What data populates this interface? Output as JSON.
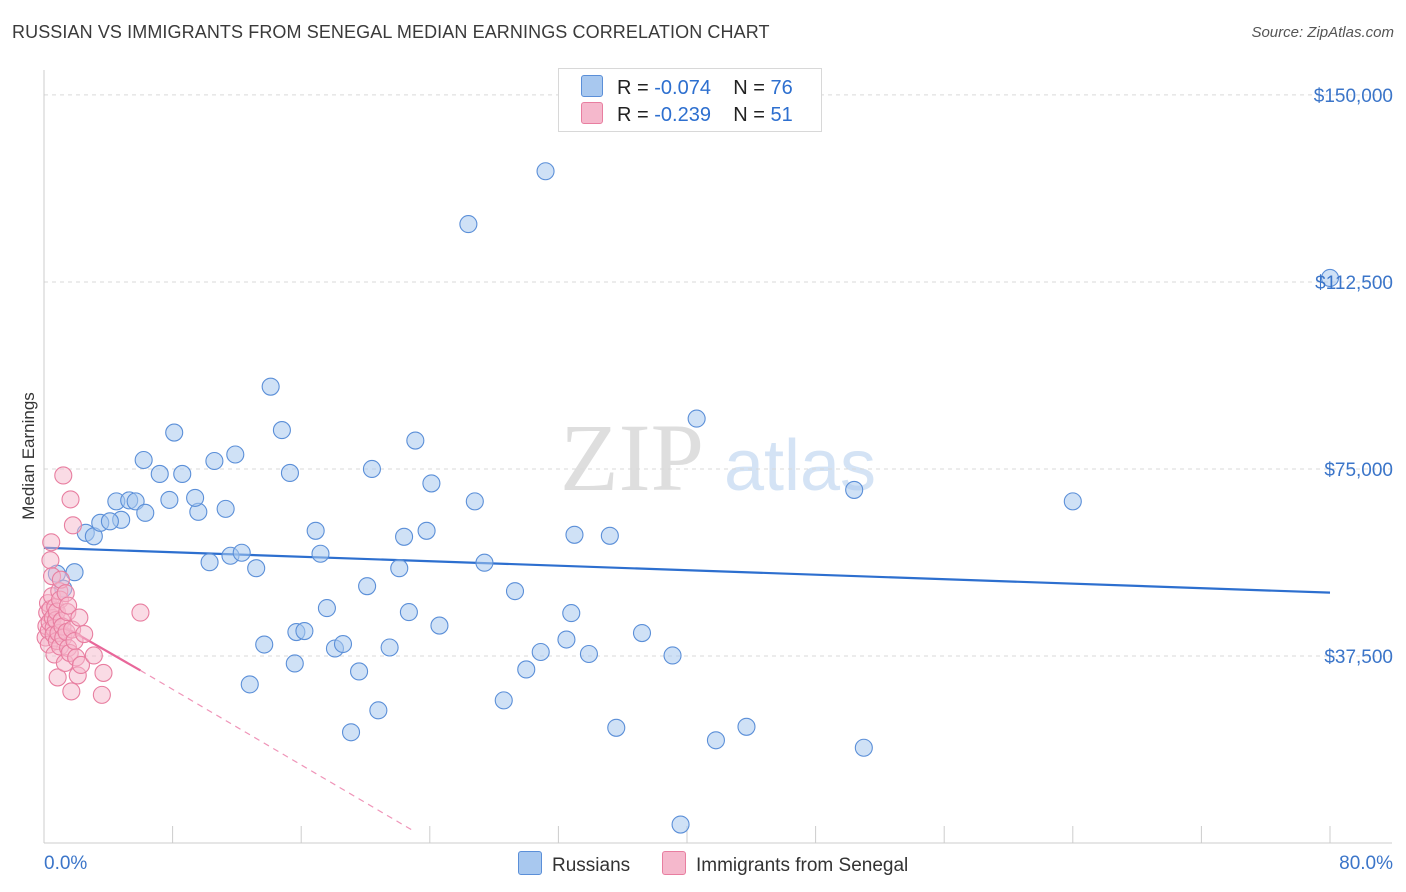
{
  "title": "RUSSIAN VS IMMIGRANTS FROM SENEGAL MEDIAN EARNINGS CORRELATION CHART",
  "source": "Source: ZipAtlas.com",
  "watermark": {
    "zip": "ZIP",
    "atlas": "atlas"
  },
  "legend": {
    "rows": [
      {
        "r_label": "R =",
        "r_value": "-0.074",
        "n_label": "N =",
        "n_value": "76"
      },
      {
        "r_label": "R =",
        "r_value": "-0.239",
        "n_label": "N =",
        "n_value": "51"
      }
    ]
  },
  "colors": {
    "blue_fill": "#a8c8ef",
    "blue_stroke": "#5b8fd8",
    "blue_line": "#2d6fcf",
    "pink_fill": "#f5b8cc",
    "pink_stroke": "#e87ea0",
    "pink_line": "#e8679a",
    "axis_label": "#3b75c9",
    "grid": "#d9d9d9"
  },
  "chart_data": {
    "type": "scatter",
    "title": "RUSSIAN VS IMMIGRANTS FROM SENEGAL MEDIAN EARNINGS CORRELATION CHART",
    "xlabel": "",
    "ylabel": "Median Earnings",
    "xlim": [
      0,
      80
    ],
    "ylim": [
      0,
      155000
    ],
    "x_tick_labels": [
      "0.0%",
      "80.0%"
    ],
    "y_ticks": [
      37500,
      75000,
      112500,
      150000
    ],
    "y_tick_labels": [
      "$37,500",
      "$75,000",
      "$112,500",
      "$150,000"
    ],
    "grid": true,
    "series": [
      {
        "name": "Russians",
        "r": -0.074,
        "n": 76,
        "trend": {
          "x": [
            0,
            80
          ],
          "y": [
            59200,
            50200
          ]
        },
        "points": [
          [
            0.8,
            54000
          ],
          [
            1.2,
            51000
          ],
          [
            1.9,
            54300
          ],
          [
            2.6,
            62200
          ],
          [
            3.1,
            61500
          ],
          [
            3.5,
            64200
          ],
          [
            4.5,
            68500
          ],
          [
            4.8,
            64800
          ],
          [
            4.1,
            64500
          ],
          [
            5.3,
            68700
          ],
          [
            5.7,
            68500
          ],
          [
            6.3,
            66200
          ],
          [
            6.2,
            76800
          ],
          [
            7.2,
            74000
          ],
          [
            7.8,
            68800
          ],
          [
            8.1,
            82300
          ],
          [
            8.6,
            74000
          ],
          [
            9.6,
            66400
          ],
          [
            9.4,
            69200
          ],
          [
            10.3,
            56300
          ],
          [
            10.6,
            76600
          ],
          [
            11.3,
            67000
          ],
          [
            11.6,
            57600
          ],
          [
            11.9,
            77900
          ],
          [
            12.3,
            58200
          ],
          [
            12.8,
            31800
          ],
          [
            13.2,
            55100
          ],
          [
            13.7,
            39800
          ],
          [
            14.1,
            91500
          ],
          [
            14.8,
            82800
          ],
          [
            15.3,
            74200
          ],
          [
            15.6,
            36000
          ],
          [
            15.7,
            42300
          ],
          [
            16.2,
            42500
          ],
          [
            16.9,
            62600
          ],
          [
            17.2,
            58000
          ],
          [
            17.6,
            47100
          ],
          [
            18.1,
            39000
          ],
          [
            18.6,
            39900
          ],
          [
            19.1,
            22200
          ],
          [
            19.6,
            34400
          ],
          [
            20.1,
            51500
          ],
          [
            20.4,
            75000
          ],
          [
            20.8,
            26600
          ],
          [
            21.5,
            39200
          ],
          [
            22.1,
            55100
          ],
          [
            22.4,
            61400
          ],
          [
            22.7,
            46300
          ],
          [
            23.1,
            80700
          ],
          [
            23.8,
            62600
          ],
          [
            24.1,
            72100
          ],
          [
            24.6,
            43600
          ],
          [
            26.4,
            124100
          ],
          [
            26.8,
            68500
          ],
          [
            27.4,
            56200
          ],
          [
            28.6,
            28600
          ],
          [
            29.3,
            50500
          ],
          [
            30.9,
            38300
          ],
          [
            31.2,
            134700
          ],
          [
            32.5,
            40800
          ],
          [
            32.8,
            46100
          ],
          [
            33.9,
            37900
          ],
          [
            35.2,
            61600
          ],
          [
            35.6,
            23100
          ],
          [
            37.2,
            42100
          ],
          [
            39.1,
            37600
          ],
          [
            39.6,
            3700
          ],
          [
            40.6,
            85100
          ],
          [
            41.8,
            20600
          ],
          [
            43.7,
            23300
          ],
          [
            50.4,
            70800
          ],
          [
            51.0,
            19100
          ],
          [
            64.0,
            68500
          ],
          [
            80.0,
            113300
          ],
          [
            30.0,
            34800
          ],
          [
            33.0,
            61800
          ]
        ]
      },
      {
        "name": "Immigrants from Senegal",
        "r": -0.239,
        "n": 51,
        "trend": {
          "x": [
            0,
            6
          ],
          "y": [
            45700,
            34600
          ]
        },
        "trend_extended": {
          "x": [
            6,
            23
          ],
          "y": [
            34600,
            2400
          ]
        },
        "points": [
          [
            0.1,
            41200
          ],
          [
            0.15,
            43500
          ],
          [
            0.2,
            46200
          ],
          [
            0.25,
            48100
          ],
          [
            0.3,
            42600
          ],
          [
            0.3,
            39800
          ],
          [
            0.35,
            44300
          ],
          [
            0.4,
            46900
          ],
          [
            0.4,
            56700
          ],
          [
            0.45,
            60300
          ],
          [
            0.5,
            49500
          ],
          [
            0.5,
            53500
          ],
          [
            0.55,
            45100
          ],
          [
            0.6,
            43100
          ],
          [
            0.6,
            41800
          ],
          [
            0.65,
            37800
          ],
          [
            0.7,
            47300
          ],
          [
            0.75,
            44700
          ],
          [
            0.8,
            40500
          ],
          [
            0.8,
            46400
          ],
          [
            0.85,
            33200
          ],
          [
            0.9,
            42100
          ],
          [
            0.95,
            50500
          ],
          [
            1.0,
            48800
          ],
          [
            1.0,
            39400
          ],
          [
            1.05,
            52800
          ],
          [
            1.1,
            44600
          ],
          [
            1.15,
            43400
          ],
          [
            1.2,
            41200
          ],
          [
            1.2,
            73700
          ],
          [
            1.3,
            36100
          ],
          [
            1.35,
            50100
          ],
          [
            1.4,
            42300
          ],
          [
            1.45,
            46300
          ],
          [
            1.5,
            47600
          ],
          [
            1.5,
            39100
          ],
          [
            1.6,
            38100
          ],
          [
            1.65,
            68900
          ],
          [
            1.7,
            30400
          ],
          [
            1.75,
            42800
          ],
          [
            1.8,
            63700
          ],
          [
            1.9,
            40500
          ],
          [
            2.0,
            37200
          ],
          [
            2.1,
            33600
          ],
          [
            2.2,
            45200
          ],
          [
            2.3,
            35700
          ],
          [
            2.5,
            41900
          ],
          [
            3.1,
            37600
          ],
          [
            3.7,
            34100
          ],
          [
            3.6,
            29700
          ],
          [
            6.0,
            46200
          ]
        ]
      }
    ]
  },
  "bottom_legend": [
    "Russians",
    "Immigrants from Senegal"
  ]
}
